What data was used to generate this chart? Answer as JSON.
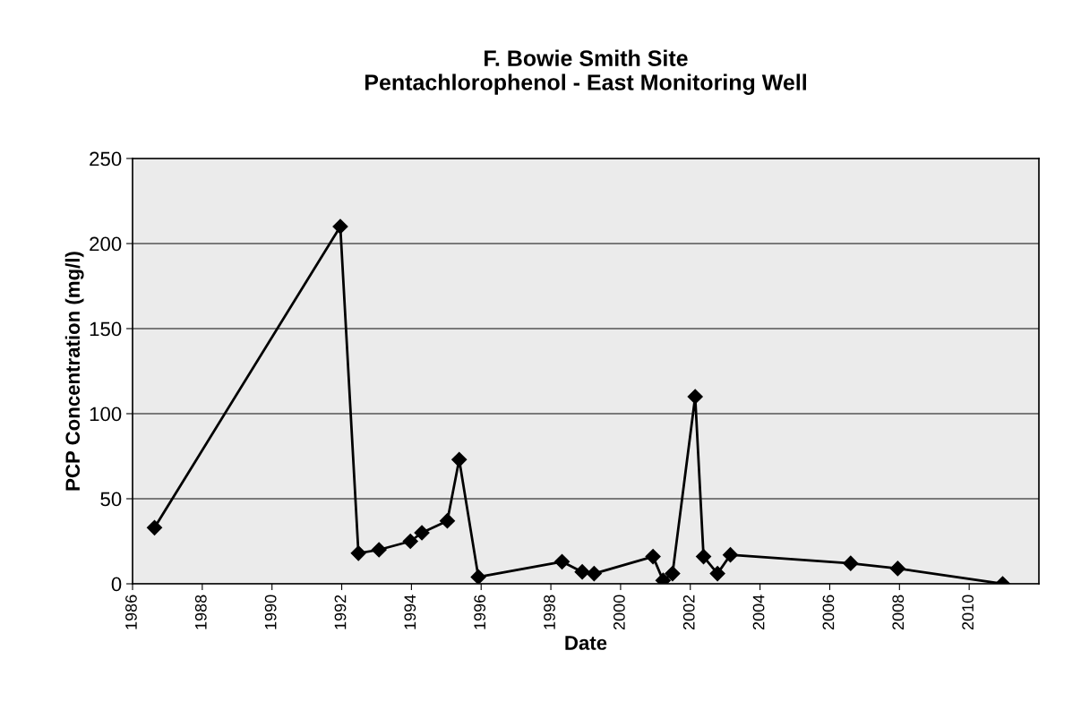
{
  "chart_data": {
    "type": "line",
    "title": "F. Bowie Smith Site\nPentachlorophenol - East Monitoring Well",
    "xlabel": "Date",
    "ylabel": "PCP Concentration (mg/l)",
    "x": [
      1986.63,
      1991.96,
      1992.48,
      1993.07,
      1993.97,
      1994.3,
      1995.03,
      1995.37,
      1995.92,
      1998.32,
      1998.9,
      1999.24,
      2000.93,
      2001.22,
      2001.49,
      2002.14,
      2002.38,
      2002.78,
      2003.15,
      2006.6,
      2007.95,
      2010.96
    ],
    "series": [
      {
        "color": "#000000",
        "values": [
          33,
          210,
          18,
          20,
          25,
          30,
          37,
          73,
          4,
          13,
          7,
          6,
          16,
          2,
          6,
          110,
          16,
          6,
          17,
          12,
          9,
          0
        ]
      }
    ],
    "xlim": [
      1986,
      2012
    ],
    "xticks": [
      1986,
      1988,
      1990,
      1992,
      1994,
      1996,
      1998,
      2000,
      2002,
      2004,
      2006,
      2008,
      2010
    ],
    "ylim": [
      0,
      250
    ],
    "yticks": [
      0,
      50,
      100,
      150,
      200,
      250
    ],
    "grid": "y",
    "marker": "diamond",
    "line_style": "solid"
  }
}
